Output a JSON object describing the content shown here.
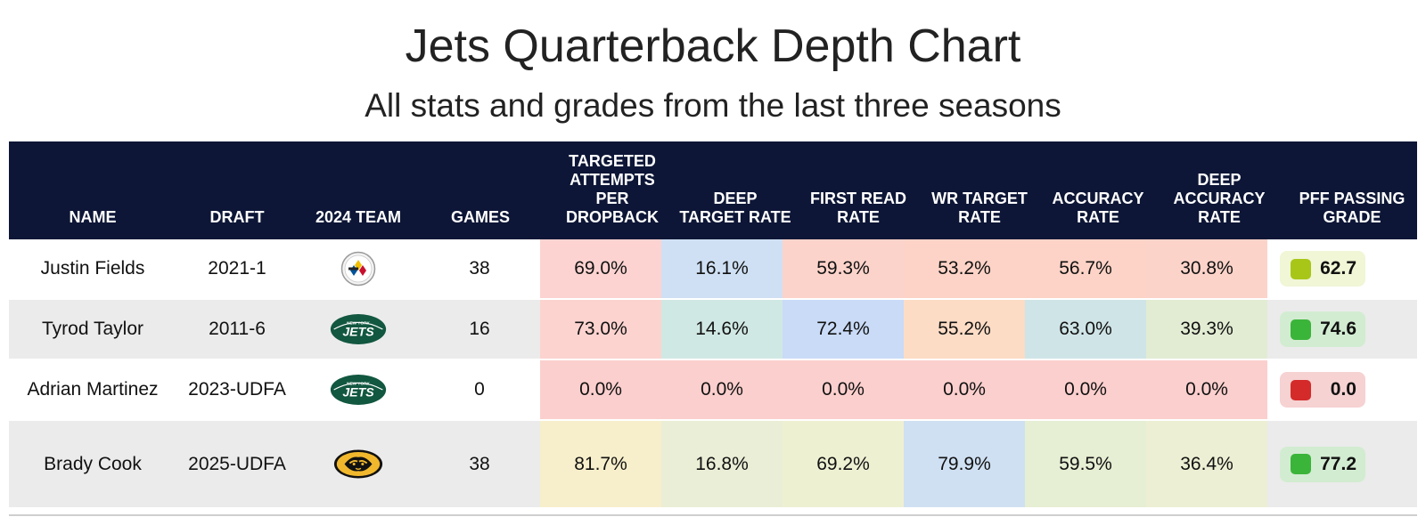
{
  "title": "Jets Quarterback Depth Chart",
  "subtitle": "All stats and grades from the last three seasons",
  "chart_data": {
    "type": "table",
    "columns": [
      "NAME",
      "DRAFT",
      "2024 TEAM",
      "GAMES",
      "TARGETED ATTEMPTS PER DROPBACK",
      "DEEP TARGET RATE",
      "FIRST READ RATE",
      "WR TARGET RATE",
      "ACCURACY RATE",
      "DEEP ACCURACY RATE",
      "PFF PASSING GRADE"
    ],
    "rows": [
      {
        "name": "Justin Fields",
        "draft": "2021-1",
        "team_icon": "steelers-logo-icon",
        "games": "38",
        "stats": [
          "69.0%",
          "16.1%",
          "59.3%",
          "53.2%",
          "56.7%",
          "30.8%"
        ],
        "stat_colors": [
          "#fcd3d1",
          "#cfe0f4",
          "#fcd3ca",
          "#fcd3c6",
          "#fcd3c6",
          "#fcd3c9"
        ],
        "grade": "62.7",
        "grade_color": "#a8c618",
        "grade_bg": "#f0f6d6"
      },
      {
        "name": "Tyrod Taylor",
        "draft": "2011-6",
        "team_icon": "jets-logo-icon",
        "games": "16",
        "stats": [
          "73.0%",
          "14.6%",
          "72.4%",
          "55.2%",
          "63.0%",
          "39.3%"
        ],
        "stat_colors": [
          "#fcd3cf",
          "#d0e8e3",
          "#c9dbf7",
          "#fcdcc5",
          "#cfe4e6",
          "#e2ecd3"
        ],
        "grade": "74.6",
        "grade_color": "#3bb43a",
        "grade_bg": "#d2ecd1"
      },
      {
        "name": "Adrian Martinez",
        "draft": "2023-UDFA",
        "team_icon": "jets-logo-icon",
        "games": "0",
        "stats": [
          "0.0%",
          "0.0%",
          "0.0%",
          "0.0%",
          "0.0%",
          "0.0%"
        ],
        "stat_colors": [
          "#fbcfcd",
          "#fbcfcd",
          "#fbcfcd",
          "#fbcfcd",
          "#fbcfcd",
          "#fbcfcd"
        ],
        "grade": "0.0",
        "grade_color": "#d42a2a",
        "grade_bg": "#f6d2d2"
      },
      {
        "name": "Brady Cook",
        "draft": "2025-UDFA",
        "team_icon": "missouri-tigers-logo-icon",
        "games": "38",
        "stats": [
          "81.7%",
          "16.8%",
          "69.2%",
          "79.9%",
          "59.5%",
          "36.4%"
        ],
        "stat_colors": [
          "#f7efcb",
          "#eaeed6",
          "#eef0d2",
          "#cfe0f2",
          "#e6eed3",
          "#ecefd3"
        ],
        "grade": "77.2",
        "grade_color": "#3bb43a",
        "grade_bg": "#d2ecd1"
      }
    ],
    "header_color": "#0d1636",
    "stripe_colors": [
      "#ffffff",
      "#ebebeb"
    ]
  }
}
